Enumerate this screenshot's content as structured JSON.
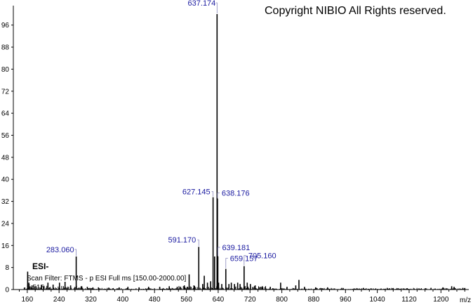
{
  "copyright": "Copyright NIBIO All Rights reserved.",
  "ionization_mode": "ESI-",
  "scan_filter": "Scan Filter: FTMS - p ESI Full ms [150.00-2000.00]",
  "background_peak_label": "5.515",
  "chart_data": {
    "type": "bar",
    "title": "",
    "xlabel": "m/z",
    "ylabel": "",
    "xlim": [
      125,
      1270
    ],
    "ylim": [
      0,
      100
    ],
    "x_ticks": [
      160,
      240,
      320,
      400,
      480,
      560,
      640,
      720,
      800,
      880,
      960,
      1040,
      1120,
      1200
    ],
    "x_tick_labels": [
      "160",
      "240",
      "320",
      "400",
      "480",
      "560",
      "640",
      "720",
      "800",
      "880",
      "960",
      "1040",
      "1120",
      "1200"
    ],
    "y_ticks": [
      0,
      8,
      16,
      24,
      32,
      40,
      48,
      56,
      64,
      72,
      80,
      88,
      96
    ],
    "y_tick_labels": [
      "0",
      "8",
      "16",
      "24",
      "32",
      "40",
      "48",
      "56",
      "64",
      "72",
      "80",
      "88",
      "96"
    ],
    "peaks": [
      {
        "mz": 161.0,
        "intensity": 6.5
      },
      {
        "mz": 164.0,
        "intensity": 2.5
      },
      {
        "mz": 172.0,
        "intensity": 1.5
      },
      {
        "mz": 182.0,
        "intensity": 1.2
      },
      {
        "mz": 196.0,
        "intensity": 1.5
      },
      {
        "mz": 212.0,
        "intensity": 2.5
      },
      {
        "mz": 225.0,
        "intensity": 1.8
      },
      {
        "mz": 241.0,
        "intensity": 2.5
      },
      {
        "mz": 255.0,
        "intensity": 2.8
      },
      {
        "mz": 269.0,
        "intensity": 1.5
      },
      {
        "mz": 283.06,
        "intensity": 12.0,
        "label": "283.060"
      },
      {
        "mz": 297.0,
        "intensity": 1.2
      },
      {
        "mz": 311.0,
        "intensity": 1.0
      },
      {
        "mz": 325.0,
        "intensity": 0.8
      },
      {
        "mz": 339.0,
        "intensity": 0.8
      },
      {
        "mz": 365.0,
        "intensity": 0.7
      },
      {
        "mz": 391.0,
        "intensity": 0.8
      },
      {
        "mz": 413.0,
        "intensity": 1.0
      },
      {
        "mz": 441.0,
        "intensity": 0.8
      },
      {
        "mz": 465.0,
        "intensity": 1.0
      },
      {
        "mz": 493.0,
        "intensity": 1.0
      },
      {
        "mz": 517.0,
        "intensity": 1.2
      },
      {
        "mz": 537.0,
        "intensity": 1.0
      },
      {
        "mz": 555.0,
        "intensity": 1.5
      },
      {
        "mz": 567.0,
        "intensity": 5.5
      },
      {
        "mz": 579.0,
        "intensity": 1.5
      },
      {
        "mz": 591.17,
        "intensity": 15.5,
        "label": "591.170"
      },
      {
        "mz": 601.0,
        "intensity": 2.0
      },
      {
        "mz": 605.0,
        "intensity": 5.0
      },
      {
        "mz": 613.0,
        "intensity": 2.5
      },
      {
        "mz": 621.0,
        "intensity": 3.0
      },
      {
        "mz": 627.145,
        "intensity": 33.5,
        "label": "627.145"
      },
      {
        "mz": 631.0,
        "intensity": 12.0
      },
      {
        "mz": 637.174,
        "intensity": 100.0,
        "label": "637.174"
      },
      {
        "mz": 638.176,
        "intensity": 33.0,
        "label": "638.176"
      },
      {
        "mz": 639.181,
        "intensity": 12.0,
        "label": "639.181"
      },
      {
        "mz": 641.0,
        "intensity": 2.5
      },
      {
        "mz": 649.0,
        "intensity": 2.0
      },
      {
        "mz": 659.157,
        "intensity": 7.5,
        "label": "659.157"
      },
      {
        "mz": 667.0,
        "intensity": 2.0
      },
      {
        "mz": 673.0,
        "intensity": 2.5
      },
      {
        "mz": 681.0,
        "intensity": 2.0
      },
      {
        "mz": 689.0,
        "intensity": 2.5
      },
      {
        "mz": 695.0,
        "intensity": 2.0
      },
      {
        "mz": 705.16,
        "intensity": 8.5,
        "label": "705.160"
      },
      {
        "mz": 713.0,
        "intensity": 2.5
      },
      {
        "mz": 721.0,
        "intensity": 2.0
      },
      {
        "mz": 733.0,
        "intensity": 1.5
      },
      {
        "mz": 751.0,
        "intensity": 1.2
      },
      {
        "mz": 771.0,
        "intensity": 1.0
      },
      {
        "mz": 797.0,
        "intensity": 2.5
      },
      {
        "mz": 813.0,
        "intensity": 1.0
      },
      {
        "mz": 835.0,
        "intensity": 1.5
      },
      {
        "mz": 843.0,
        "intensity": 3.5
      },
      {
        "mz": 857.0,
        "intensity": 1.0
      },
      {
        "mz": 885.0,
        "intensity": 0.8
      },
      {
        "mz": 915.0,
        "intensity": 0.8
      },
      {
        "mz": 951.0,
        "intensity": 0.6
      },
      {
        "mz": 1005.0,
        "intensity": 0.6
      },
      {
        "mz": 1065.0,
        "intensity": 0.6
      },
      {
        "mz": 1115.0,
        "intensity": 0.5
      },
      {
        "mz": 1175.0,
        "intensity": 0.6
      },
      {
        "mz": 1205.0,
        "intensity": 0.8
      },
      {
        "mz": 1227.0,
        "intensity": 1.2
      },
      {
        "mz": 1233.0,
        "intensity": 1.0
      },
      {
        "mz": 1255.0,
        "intensity": 0.6
      }
    ],
    "grid": false,
    "legend": "none"
  }
}
